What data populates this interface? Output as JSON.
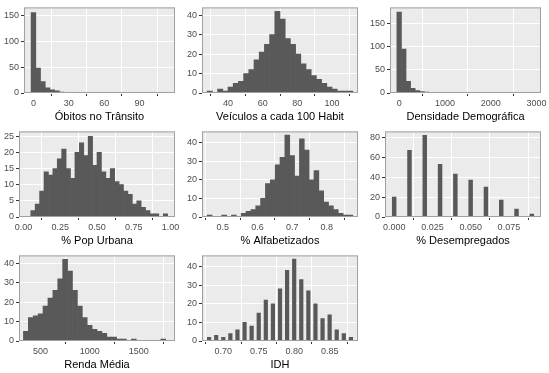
{
  "chart_data": [
    {
      "type": "histogram",
      "x_label": "Óbitos no Trânsito",
      "color": "#595959",
      "grid": true,
      "bins": [
        -2,
        2,
        6,
        10,
        14,
        18,
        22,
        26,
        30,
        34,
        38,
        42,
        46,
        50,
        54,
        58,
        62,
        66,
        70,
        74,
        78,
        82,
        86,
        90,
        94,
        98,
        102,
        106,
        110,
        114
      ],
      "values": [
        155,
        48,
        22,
        10,
        6,
        4,
        2,
        1,
        1,
        0,
        1,
        0,
        1,
        1,
        0,
        1,
        0,
        0,
        0,
        0,
        0,
        0,
        0,
        0,
        1,
        0,
        0,
        0,
        1
      ],
      "xlim": [
        -8,
        120
      ],
      "xticks": [
        0,
        30,
        60,
        90
      ],
      "ylim": [
        0,
        165
      ],
      "yticks": [
        0,
        50,
        100,
        150
      ]
    },
    {
      "type": "histogram",
      "x_label": "Veículos a cada 100 Habit",
      "color": "#595959",
      "grid": true,
      "bins": [
        28,
        31,
        34,
        37,
        40,
        43,
        46,
        49,
        52,
        55,
        58,
        61,
        64,
        67,
        70,
        73,
        76,
        79,
        82,
        85,
        88,
        91,
        94,
        97,
        100,
        103,
        106,
        109,
        112
      ],
      "values": [
        1,
        0,
        2,
        1,
        3,
        5,
        6,
        10,
        12,
        17,
        21,
        25,
        30,
        42,
        38,
        28,
        25,
        20,
        15,
        12,
        9,
        7,
        5,
        3,
        2,
        1,
        1,
        1
      ],
      "xlim": [
        25,
        115
      ],
      "xticks": [
        40,
        60,
        80,
        100
      ],
      "ylim": [
        0,
        44
      ],
      "yticks": [
        0,
        10,
        20,
        30,
        40
      ]
    },
    {
      "type": "histogram",
      "x_label": "Densidade Demográfica",
      "color": "#595959",
      "grid": true,
      "bins": [
        -50,
        50,
        150,
        250,
        350,
        450,
        550,
        650,
        750,
        850,
        950,
        1050,
        1150,
        1250,
        1350,
        1450,
        1550,
        1650,
        1750,
        1850,
        1950,
        2050,
        2150,
        2250,
        2350,
        2450,
        2550,
        2650,
        2750,
        2850,
        2950
      ],
      "values": [
        175,
        95,
        25,
        10,
        5,
        3,
        2,
        1,
        1,
        0,
        1,
        0,
        0,
        0,
        0,
        0,
        0,
        0,
        0,
        0,
        0,
        0,
        0,
        0,
        0,
        0,
        0,
        0,
        1,
        0
      ],
      "xlim": [
        -200,
        3100
      ],
      "xticks": [
        0,
        1000,
        2000,
        3000
      ],
      "ylim": [
        0,
        185
      ],
      "yticks": [
        0,
        50,
        100,
        150
      ]
    },
    {
      "type": "histogram",
      "x_label": "% Pop Urbana",
      "color": "#595959",
      "grid": true,
      "bins": [
        0.05,
        0.08,
        0.11,
        0.14,
        0.17,
        0.2,
        0.23,
        0.26,
        0.29,
        0.32,
        0.35,
        0.38,
        0.41,
        0.44,
        0.47,
        0.5,
        0.53,
        0.56,
        0.59,
        0.62,
        0.65,
        0.68,
        0.71,
        0.74,
        0.77,
        0.8,
        0.83,
        0.86,
        0.89,
        0.92,
        0.95,
        0.98
      ],
      "values": [
        2,
        4,
        8,
        14,
        13,
        15,
        18,
        21,
        15,
        12,
        20,
        23,
        19,
        25,
        16,
        20,
        14,
        12,
        15,
        11,
        10,
        8,
        7,
        4,
        5,
        3,
        2,
        1,
        1,
        0,
        1
      ],
      "xlim": [
        -0.03,
        1.03
      ],
      "xticks": [
        {
          "value": 0,
          "label": "0.00"
        },
        {
          "value": 0.25,
          "label": "0.25"
        },
        {
          "value": 0.5,
          "label": "0.50"
        },
        {
          "value": 0.75,
          "label": "0.75"
        },
        {
          "value": 1,
          "label": "1.00"
        }
      ],
      "ylim": [
        0,
        26.5
      ],
      "yticks": [
        0,
        5,
        10,
        15,
        20,
        25
      ]
    },
    {
      "type": "histogram",
      "x_label": "% Alfabetizados",
      "color": "#595959",
      "grid": true,
      "bins": [
        0.455,
        0.469,
        0.483,
        0.497,
        0.511,
        0.525,
        0.539,
        0.553,
        0.567,
        0.581,
        0.595,
        0.609,
        0.623,
        0.637,
        0.651,
        0.665,
        0.679,
        0.693,
        0.707,
        0.721,
        0.735,
        0.749,
        0.763,
        0.777,
        0.791,
        0.805,
        0.819,
        0.833,
        0.847,
        0.861,
        0.875
      ],
      "values": [
        1,
        0,
        0,
        1,
        0,
        1,
        0,
        2,
        3,
        4,
        6,
        10,
        18,
        20,
        28,
        32,
        44,
        33,
        22,
        42,
        36,
        20,
        25,
        14,
        8,
        6,
        4,
        2,
        1,
        1
      ],
      "xlim": [
        0.44,
        0.89
      ],
      "xticks": [
        0.5,
        0.6,
        0.7,
        0.8
      ],
      "ylim": [
        0,
        46
      ],
      "yticks": [
        0,
        10,
        20,
        30,
        40
      ]
    },
    {
      "type": "histogram",
      "x_label": "% Desempregados",
      "color": "#595959",
      "grid": true,
      "bins": [
        -0.00125,
        0.00125,
        0.00375,
        0.00625,
        0.00875,
        0.01125,
        0.01375,
        0.01625,
        0.01875,
        0.02125,
        0.02375,
        0.02625,
        0.02875,
        0.03125,
        0.03375,
        0.03625,
        0.03875,
        0.04125,
        0.04375,
        0.04625,
        0.04875,
        0.05125,
        0.05375,
        0.05625,
        0.05875,
        0.06125,
        0.06375,
        0.06625,
        0.06875,
        0.07125,
        0.07375,
        0.07625,
        0.07875,
        0.08125,
        0.08375,
        0.08625,
        0.08875,
        0.09125
      ],
      "values": [
        20,
        0,
        0,
        0,
        67,
        0,
        0,
        0,
        82,
        0,
        0,
        0,
        53,
        0,
        0,
        0,
        43,
        0,
        0,
        0,
        37,
        0,
        0,
        0,
        30,
        0,
        0,
        0,
        17,
        0,
        0,
        0,
        8,
        0,
        0,
        0,
        3
      ],
      "xlim": [
        -0.006,
        0.096
      ],
      "xticks": [
        {
          "value": 0,
          "label": "0.000"
        },
        {
          "value": 0.025,
          "label": "0.025"
        },
        {
          "value": 0.05,
          "label": "0.050"
        },
        {
          "value": 0.075,
          "label": "0.075"
        }
      ],
      "ylim": [
        0,
        86
      ],
      "yticks": [
        0,
        20,
        40,
        60,
        80
      ]
    },
    {
      "type": "histogram",
      "x_label": "Renda Média",
      "color": "#595959",
      "grid": true,
      "bins": [
        325,
        375,
        425,
        475,
        525,
        575,
        625,
        675,
        725,
        775,
        825,
        875,
        925,
        975,
        1025,
        1075,
        1125,
        1175,
        1225,
        1275,
        1325,
        1375,
        1425,
        1475,
        1525,
        1575,
        1625,
        1675,
        1725,
        1775,
        1825
      ],
      "values": [
        5,
        12,
        13,
        14,
        18,
        22,
        26,
        32,
        42,
        36,
        26,
        18,
        12,
        8,
        6,
        5,
        4,
        2,
        2,
        1,
        1,
        0,
        1,
        0,
        0,
        0,
        0,
        0,
        1,
        0
      ],
      "xlim": [
        280,
        1870
      ],
      "xticks": [
        500,
        1000,
        1500
      ],
      "ylim": [
        0,
        44
      ],
      "yticks": [
        0,
        10,
        20,
        30,
        40
      ]
    },
    {
      "type": "histogram",
      "x_label": "IDH",
      "color": "#595959",
      "grid": true,
      "bins": [
        0.6775,
        0.6825,
        0.6875,
        0.6925,
        0.6975,
        0.7025,
        0.7075,
        0.7125,
        0.7175,
        0.7225,
        0.7275,
        0.7325,
        0.7375,
        0.7425,
        0.7475,
        0.7525,
        0.7575,
        0.7625,
        0.7675,
        0.7725,
        0.7775,
        0.7825,
        0.7875,
        0.7925,
        0.7975,
        0.8025,
        0.8075,
        0.8125,
        0.8175,
        0.8225,
        0.8275,
        0.8325,
        0.8375,
        0.8425,
        0.8475,
        0.8525,
        0.8575,
        0.8625,
        0.8675,
        0.8725,
        0.8775,
        0.8825
      ],
      "values": [
        2,
        0,
        3,
        0,
        2,
        0,
        4,
        0,
        6,
        0,
        10,
        0,
        8,
        0,
        15,
        0,
        22,
        0,
        20,
        0,
        28,
        0,
        38,
        0,
        44,
        0,
        33,
        0,
        27,
        0,
        20,
        0,
        12,
        0,
        14,
        0,
        6,
        0,
        4,
        0,
        2
      ],
      "xlim": [
        0.67,
        0.89
      ],
      "xticks": [
        {
          "value": 0.7,
          "label": "0.70"
        },
        {
          "value": 0.75,
          "label": "0.75"
        },
        {
          "value": 0.8,
          "label": "0.80"
        },
        {
          "value": 0.85,
          "label": "0.85"
        }
      ],
      "ylim": [
        0,
        46
      ],
      "yticks": [
        0,
        10,
        20,
        30,
        40
      ]
    }
  ]
}
